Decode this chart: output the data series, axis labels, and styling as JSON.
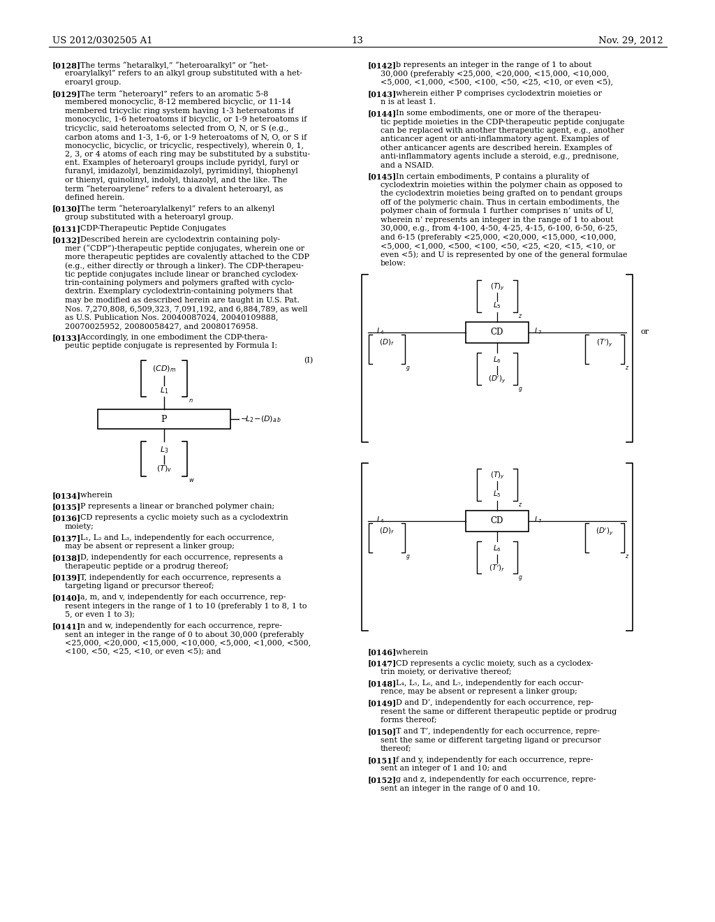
{
  "page_header_left": "US 2012/0302505 A1",
  "page_header_right": "Nov. 29, 2012",
  "page_number": "13",
  "background_color": "#ffffff",
  "left_col_paragraphs": [
    {
      "tag": "[0128]",
      "body": "The terms “hetaralkyl,” “heteroaralkyl” or “het-\neroarylalkyl” refers to an alkyl group substituted with a het-\neroaryl group."
    },
    {
      "tag": "[0129]",
      "body": "The term “heteroaryl” refers to an aromatic 5-8\nmembered monocyclic, 8-12 membered bicyclic, or 11-14\nmembered tricyclic ring system having 1-3 heteroatoms if\nmonocyclic, 1-6 heteroatoms if bicyclic, or 1-9 heteroatoms if\ntricyclic, said heteroatoms selected from O, N, or S (e.g.,\ncarbon atoms and 1-3, 1-6, or 1-9 heteroatoms of N, O, or S if\nmonocyclic, bicyclic, or tricyclic, respectively), wherein 0, 1,\n2, 3, or 4 atoms of each ring may be substituted by a substitu-\nent. Examples of heteroaryl groups include pyridyl, furyl or\nfuranyl, imidazolyl, benzimidazolyl, pyrimidinyl, thiophenyl\nor thienyl, quinolinyl, indolyl, thiazolyl, and the like. The\nterm “heteroarylene” refers to a divalent heteroaryl, as\ndefined herein."
    },
    {
      "tag": "[0130]",
      "body": "The term “heteroarylalkenyl” refers to an alkenyl\ngroup substituted with a heteroaryl group."
    },
    {
      "tag": "[0131]",
      "body": "CDP-Therapeutic Peptide Conjugates"
    },
    {
      "tag": "[0132]",
      "body": "Described herein are cyclodextrin containing poly-\nmer (“CDP”)-therapeutic peptide conjugates, wherein one or\nmore therapeutic peptides are covalently attached to the CDP\n(e.g., either directly or through a linker). The CDP-therapeu-\ntic peptide conjugates include linear or branched cyclodex-\ntrin-containing polymers and polymers grafted with cyclo-\ndextrin. Exemplary cyclodextrin-containing polymers that\nmay be modified as described herein are taught in U.S. Pat.\nNos. 7,270,808, 6,509,323, 7,091,192, and 6,884,789, as well\nas U.S. Publication Nos. 20040087024, 20040109888,\n20070025952, 20080058427, and 20080176958."
    },
    {
      "tag": "[0133]",
      "body": "Accordingly, in one embodiment the CDP-thera-\npeutic peptide conjugate is represented by Formula I:"
    },
    {
      "tag": "[0134]",
      "body": "wherein"
    },
    {
      "tag": "[0135]",
      "body": "P represents a linear or branched polymer chain;"
    },
    {
      "tag": "[0136]",
      "body": "CD represents a cyclic moiety such as a cyclodextrin\nmoiety;"
    },
    {
      "tag": "[0137]",
      "body": "L₁, L₂ and L₃, independently for each occurrence,\nmay be absent or represent a linker group;"
    },
    {
      "tag": "[0138]",
      "body": "D, independently for each occurrence, represents a\ntherapeutic peptide or a prodrug thereof;"
    },
    {
      "tag": "[0139]",
      "body": "T, independently for each occurrence, represents a\ntargeting ligand or precursor thereof;"
    },
    {
      "tag": "[0140]",
      "body": "a, m, and v, independently for each occurrence, rep-\nresent integers in the range of 1 to 10 (preferably 1 to 8, 1 to\n5, or even 1 to 3);"
    },
    {
      "tag": "[0141]",
      "body": "n and w, independently for each occurrence, repre-\nsent an integer in the range of 0 to about 30,000 (preferably\n<25,000, <20,000, <15,000, <10,000, <5,000, <1,000, <500,\n<100, <50, <25, <10, or even <5); and"
    }
  ],
  "right_col_paragraphs": [
    {
      "tag": "[0142]",
      "body": "b represents an integer in the range of 1 to about\n30,000 (preferably <25,000, <20,000, <15,000, <10,000,\n<5,000, <1,000, <500, <100, <50, <25, <10, or even <5),"
    },
    {
      "tag": "[0143]",
      "body": "wherein either P comprises cyclodextrin moieties or\nn is at least 1."
    },
    {
      "tag": "[0144]",
      "body": "In some embodiments, one or more of the therapeu-\ntic peptide moieties in the CDP-therapeutic peptide conjugate\ncan be replaced with another therapeutic agent, e.g., another\nanticancer agent or anti-inflammatory agent. Examples of\nother anticancer agents are described herein. Examples of\nanti-inflammatory agents include a steroid, e.g., prednisone,\nand a NSAID."
    },
    {
      "tag": "[0145]",
      "body": "In certain embodiments, P contains a plurality of\ncyclodextrin moieties within the polymer chain as opposed to\nthe cyclodextrin moieties being grafted on to pendant groups\noff of the polymeric chain. Thus in certain embodiments, the\npolymer chain of formula 1 further comprises n’ units of U,\nwherein n’ represents an integer in the range of 1 to about\n30,000, e.g., from 4-100, 4-50, 4-25, 4-15, 6-100, 6-50, 6-25,\nand 6-15 (preferably <25,000, <20,000, <15,000, <10,000,\n<5,000, <1,000, <500, <100, <50, <25, <20, <15, <10, or\neven <5); and U is represented by one of the general formulae\nbelow:"
    },
    {
      "tag": "[0146]",
      "body": "wherein"
    },
    {
      "tag": "[0147]",
      "body": "CD represents a cyclic moiety, such as a cyclodex-\ntrin moiety, or derivative thereof;"
    },
    {
      "tag": "[0148]",
      "body": "L₄, L₅, L₆, and L₇, independently for each occur-\nrence, may be absent or represent a linker group;"
    },
    {
      "tag": "[0149]",
      "body": "D and D’, independently for each occurrence, rep-\nresent the same or different therapeutic peptide or prodrug\nforms thereof;"
    },
    {
      "tag": "[0150]",
      "body": "T and T’, independently for each occurrence, repre-\nsent the same or different targeting ligand or precursor\nthereof;"
    },
    {
      "tag": "[0151]",
      "body": "f and y, independently for each occurrence, repre-\nsent an integer of 1 and 10; and"
    },
    {
      "tag": "[0152]",
      "body": "g and z, independently for each occurrence, repre-\nsent an integer in the range of 0 and 10."
    }
  ]
}
